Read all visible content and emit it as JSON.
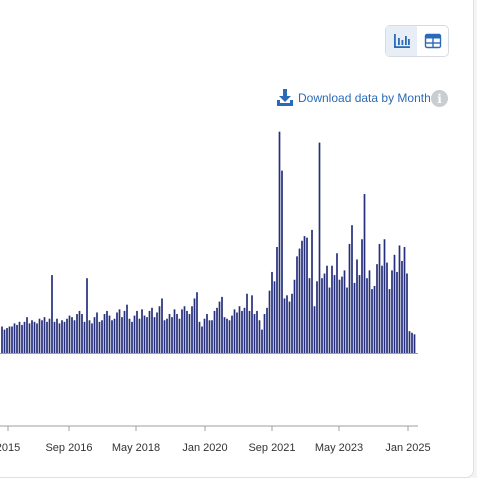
{
  "controls": {
    "chart_icon": "bar-chart-icon",
    "table_icon": "table-icon",
    "download_label": "Download data by Month",
    "info_icon": "info-icon",
    "info_text": "i"
  },
  "colors": {
    "bar": "#26307a",
    "accent": "#2a6ab8",
    "axis": "#9aa0a6"
  },
  "chart_data": {
    "type": "bar",
    "x_tick_labels": [
      "2015",
      "Sep 2016",
      "May 2018",
      "Jan 2020",
      "Sep 2021",
      "May 2023",
      "Jan 2025"
    ],
    "values": [
      17,
      15,
      16,
      17,
      17,
      19,
      18,
      20,
      18,
      20,
      23,
      19,
      21,
      20,
      19,
      22,
      21,
      23,
      20,
      22,
      50,
      20,
      22,
      19,
      21,
      20,
      22,
      24,
      23,
      21,
      25,
      27,
      25,
      20,
      48,
      21,
      19,
      23,
      26,
      20,
      21,
      25,
      27,
      24,
      21,
      22,
      26,
      28,
      23,
      27,
      31,
      22,
      20,
      24,
      27,
      22,
      28,
      24,
      23,
      27,
      29,
      23,
      26,
      30,
      35,
      21,
      22,
      25,
      23,
      28,
      25,
      22,
      28,
      30,
      27,
      25,
      30,
      35,
      39,
      20,
      17,
      22,
      25,
      21,
      21,
      27,
      29,
      33,
      36,
      23,
      22,
      21,
      24,
      28,
      26,
      30,
      27,
      29,
      38,
      27,
      37,
      25,
      27,
      21,
      15,
      25,
      29,
      40,
      52,
      46,
      68,
      142,
      117,
      35,
      37,
      33,
      38,
      47,
      62,
      67,
      72,
      75,
      74,
      48,
      79,
      30,
      46,
      135,
      48,
      51,
      56,
      42,
      56,
      50,
      64,
      47,
      49,
      53,
      42,
      70,
      82,
      45,
      60,
      50,
      73,
      102,
      48,
      53,
      41,
      43,
      57,
      70,
      56,
      73,
      58,
      41,
      53,
      63,
      52,
      69,
      59,
      68,
      51,
      14,
      13,
      12
    ],
    "ylim": [
      0,
      160
    ]
  }
}
